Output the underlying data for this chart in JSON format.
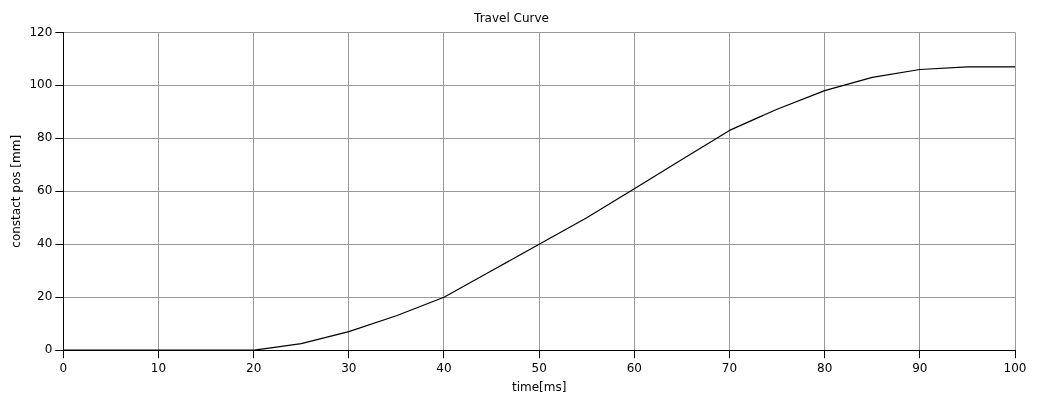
{
  "chart_data": {
    "type": "line",
    "title": "Travel Curve",
    "xlabel": "time[ms]",
    "ylabel": "constact pos [mm]",
    "x": [
      0,
      20,
      22,
      25,
      30,
      35,
      40,
      45,
      50,
      55,
      60,
      65,
      70,
      75,
      80,
      85,
      90,
      95,
      100
    ],
    "series": [
      {
        "color": "#000000",
        "values": [
          0,
          0,
          1,
          2.5,
          7,
          13,
          20,
          30,
          40,
          50,
          61,
          72,
          83,
          91,
          98,
          103,
          106,
          107,
          107
        ]
      }
    ],
    "xlim": [
      0,
      100
    ],
    "xticks": [
      0,
      10,
      20,
      30,
      40,
      50,
      60,
      70,
      80,
      90,
      100
    ],
    "ylim": [
      0,
      120
    ],
    "yticks": [
      0,
      20,
      40,
      60,
      80,
      100,
      120
    ],
    "grid": true,
    "legend": false,
    "marker": "none",
    "line_style": "solid"
  }
}
